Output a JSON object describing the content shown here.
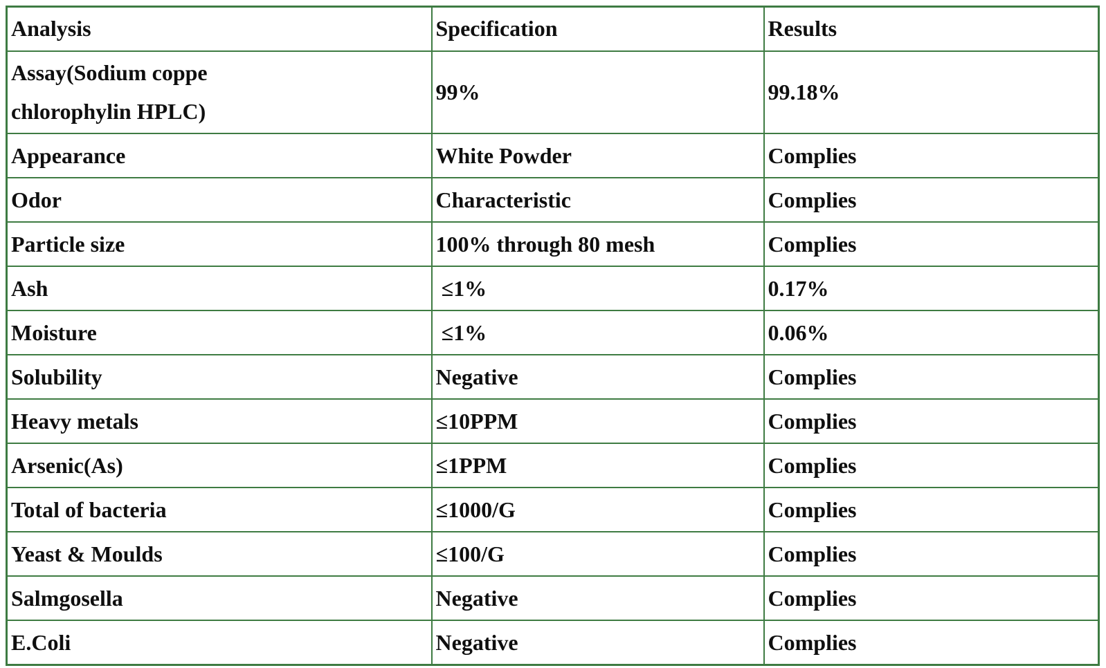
{
  "page": {
    "background_color": "#ffffff"
  },
  "table": {
    "border_color": "#3e7b42",
    "text_color": "#0f0f0f",
    "columns": [
      "Analysis",
      "Specification",
      "Results"
    ],
    "rows": [
      {
        "analysis": "Assay(Sodium coppe\nchlorophylin HPLC)",
        "specification": "99%",
        "results": "99.18%"
      },
      {
        "analysis": "Appearance",
        "specification": "White Powder",
        "results": "Complies"
      },
      {
        "analysis": "Odor",
        "specification": "Characteristic",
        "results": "Complies"
      },
      {
        "analysis": "Particle size",
        "specification": "100% through 80 mesh",
        "results": "Complies"
      },
      {
        "analysis": "Ash",
        "specification": " ≤1%",
        "results": "0.17%"
      },
      {
        "analysis": "Moisture",
        "specification": " ≤1%",
        "results": "0.06%"
      },
      {
        "analysis": "Solubility",
        "specification": "Negative",
        "results": "Complies"
      },
      {
        "analysis": "Heavy metals",
        "specification": "≤10PPM",
        "results": "Complies"
      },
      {
        "analysis": "Arsenic(As)",
        "specification": "≤1PPM",
        "results": "Complies"
      },
      {
        "analysis": "Total of bacteria",
        "specification": "≤1000/G",
        "results": "Complies"
      },
      {
        "analysis": "Yeast & Moulds",
        "specification": "≤100/G",
        "results": "Complies"
      },
      {
        "analysis": "Salmgosella",
        "specification": "Negative",
        "results": "Complies"
      },
      {
        "analysis": "E.Coli",
        "specification": "Negative",
        "results": "Complies"
      }
    ]
  }
}
